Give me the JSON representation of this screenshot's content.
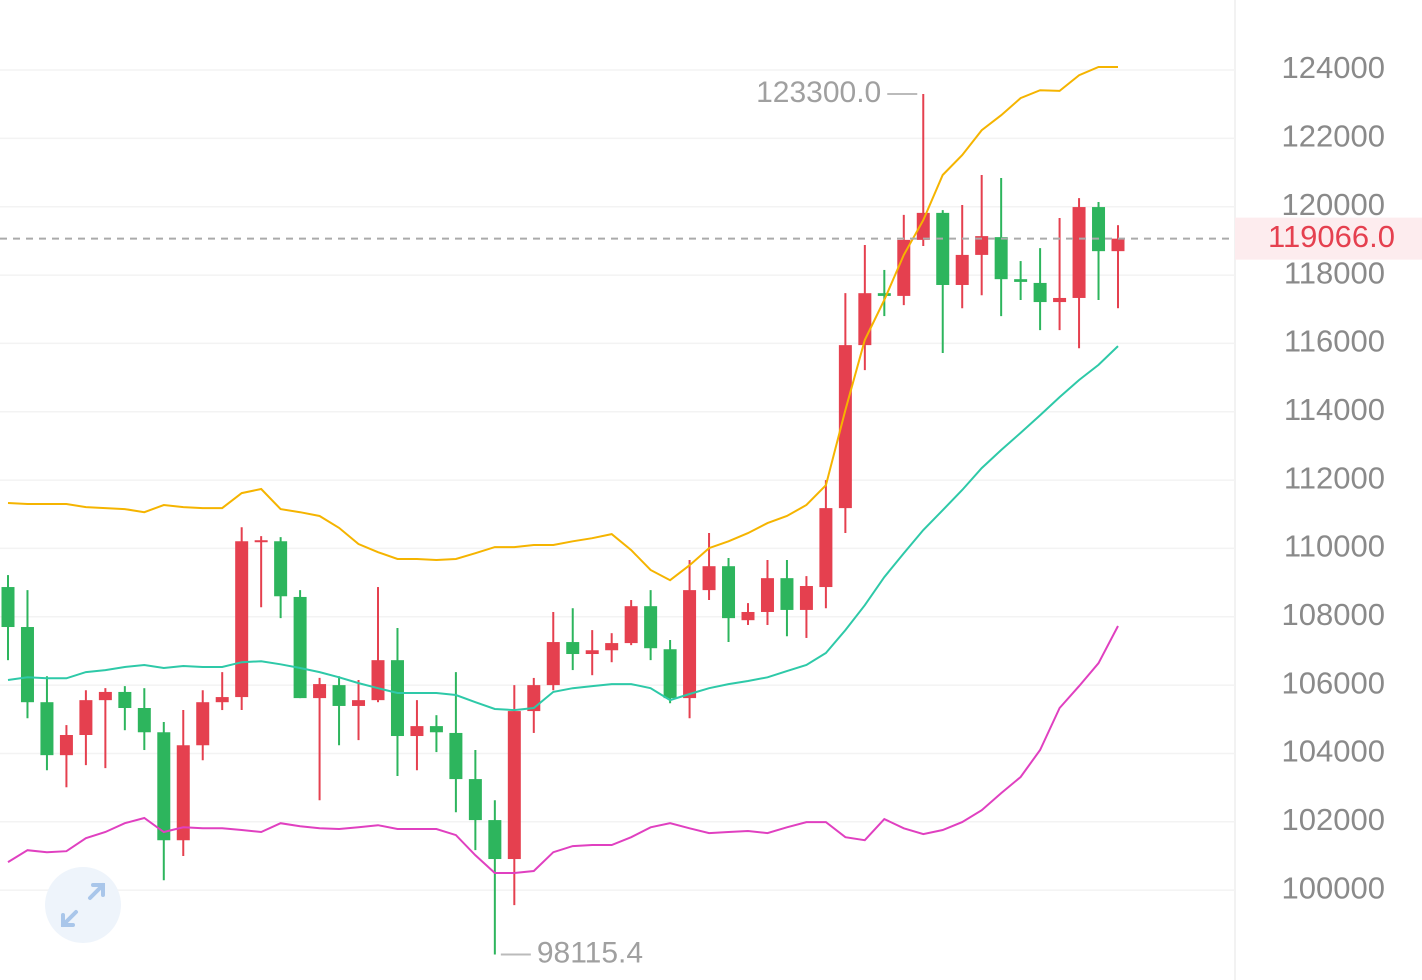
{
  "chart_data": {
    "type": "candlestick",
    "ylim": [
      97370,
      126050
    ],
    "yticks": [
      100000,
      102000,
      104000,
      106000,
      108000,
      110000,
      112000,
      114000,
      116000,
      118000,
      120000,
      122000,
      124000
    ],
    "grid": true,
    "up_color": "#e5404f",
    "down_color": "#2db55d",
    "open": [
      108870,
      107700,
      105500,
      103950,
      104540,
      105560,
      105800,
      105330,
      104620,
      101460,
      104240,
      105500,
      105650,
      110190,
      110210,
      108580,
      105620,
      106000,
      105390,
      105560,
      106730,
      104510,
      104800,
      104600,
      103250,
      102050,
      100910,
      105240,
      106000,
      107260,
      106910,
      107020,
      107230,
      108310,
      107050,
      105620,
      108780,
      109480,
      107900,
      108140,
      109130,
      108200,
      108870,
      111180,
      115950,
      117470,
      117390,
      119030,
      119820,
      117710,
      118590,
      119110,
      117880,
      117770,
      117210,
      117330,
      119990,
      118700
    ],
    "high": [
      109220,
      108780,
      106260,
      104830,
      105850,
      105910,
      105970,
      105910,
      104920,
      105270,
      105850,
      106380,
      110620,
      110360,
      110330,
      108780,
      106210,
      106260,
      106150,
      108870,
      107670,
      105560,
      105120,
      106380,
      104100,
      102630,
      106000,
      106210,
      108140,
      108250,
      107610,
      107520,
      108490,
      108780,
      107320,
      109660,
      110450,
      109720,
      108400,
      109660,
      109660,
      109190,
      112000,
      117470,
      118880,
      118150,
      119760,
      123300,
      119900,
      120050,
      120930,
      120840,
      118410,
      118790,
      119670,
      120250,
      120140,
      119460
    ],
    "low": [
      106730,
      105030,
      103510,
      103010,
      103660,
      103570,
      104680,
      104100,
      100290,
      101000,
      103800,
      105270,
      105270,
      108280,
      107960,
      105620,
      102630,
      104240,
      104390,
      105500,
      103340,
      103510,
      104040,
      102280,
      101170,
      98115.4,
      99560,
      104600,
      105850,
      106440,
      106290,
      106670,
      107170,
      106730,
      105470,
      105030,
      108490,
      107260,
      107760,
      107760,
      107430,
      107380,
      108250,
      110450,
      115220,
      116800,
      117120,
      118850,
      115720,
      117030,
      117410,
      116800,
      117270,
      116390,
      116390,
      115860,
      117270,
      117030
    ],
    "close": [
      107700,
      105500,
      103950,
      104540,
      105560,
      105800,
      105330,
      104620,
      101460,
      104240,
      105500,
      105650,
      110210,
      110240,
      108600,
      105620,
      106030,
      105390,
      105560,
      106730,
      104510,
      104800,
      104620,
      103250,
      102050,
      100910,
      105240,
      106000,
      107260,
      106910,
      107020,
      107230,
      108310,
      107080,
      105620,
      108780,
      109480,
      107960,
      108140,
      109130,
      108200,
      108900,
      111180,
      115950,
      117470,
      117390,
      119030,
      119820,
      117710,
      118590,
      119140,
      117880,
      117800,
      117210,
      117330,
      119990,
      118700,
      119066
    ],
    "lines": [
      {
        "color": "#f5b400",
        "values": [
          111330,
          111300,
          111300,
          111300,
          111210,
          111180,
          111150,
          111060,
          111270,
          111210,
          111180,
          111180,
          111620,
          111740,
          111150,
          111060,
          110950,
          110600,
          110130,
          109890,
          109690,
          109690,
          109660,
          109690,
          109860,
          110040,
          110040,
          110100,
          110100,
          110210,
          110300,
          110420,
          109950,
          109370,
          109070,
          109510,
          110010,
          110210,
          110450,
          110740,
          110950,
          111270,
          111850,
          114050,
          116100,
          117270,
          118590,
          119610,
          120930,
          121510,
          122240,
          122680,
          123180,
          123410,
          123390,
          123850,
          124090,
          124090
        ]
      },
      {
        "color": "#2ec9a8",
        "values": [
          106150,
          106230,
          106200,
          106200,
          106380,
          106440,
          106530,
          106590,
          106500,
          106560,
          106530,
          106530,
          106670,
          106700,
          106610,
          106500,
          106380,
          106230,
          106060,
          105910,
          105770,
          105770,
          105770,
          105710,
          105500,
          105300,
          105270,
          105330,
          105800,
          105910,
          105970,
          106030,
          106030,
          105910,
          105560,
          105740,
          105910,
          106030,
          106120,
          106230,
          106410,
          106590,
          106940,
          107610,
          108340,
          109160,
          109860,
          110540,
          111120,
          111710,
          112350,
          112880,
          113380,
          113900,
          114430,
          114930,
          115370,
          115920
        ]
      },
      {
        "color": "#e040c0",
        "values": [
          100820,
          101170,
          101110,
          101140,
          101520,
          101700,
          101960,
          102110,
          101700,
          101840,
          101810,
          101810,
          101760,
          101700,
          101960,
          101870,
          101810,
          101790,
          101840,
          101900,
          101790,
          101790,
          101790,
          101610,
          101020,
          100500,
          100500,
          100560,
          101110,
          101290,
          101320,
          101320,
          101550,
          101840,
          101960,
          101810,
          101670,
          101700,
          101730,
          101670,
          101840,
          101990,
          101990,
          101550,
          101460,
          102080,
          101810,
          101640,
          101760,
          101990,
          102340,
          102840,
          103310,
          104100,
          105330,
          105970,
          106640,
          107730
        ]
      }
    ],
    "annotations": [
      {
        "value": 123300,
        "label": "123300.0"
      },
      {
        "value": 98115.4,
        "label": "98115.4"
      }
    ],
    "last_price": {
      "value": 119066,
      "label": "119066.0"
    }
  }
}
